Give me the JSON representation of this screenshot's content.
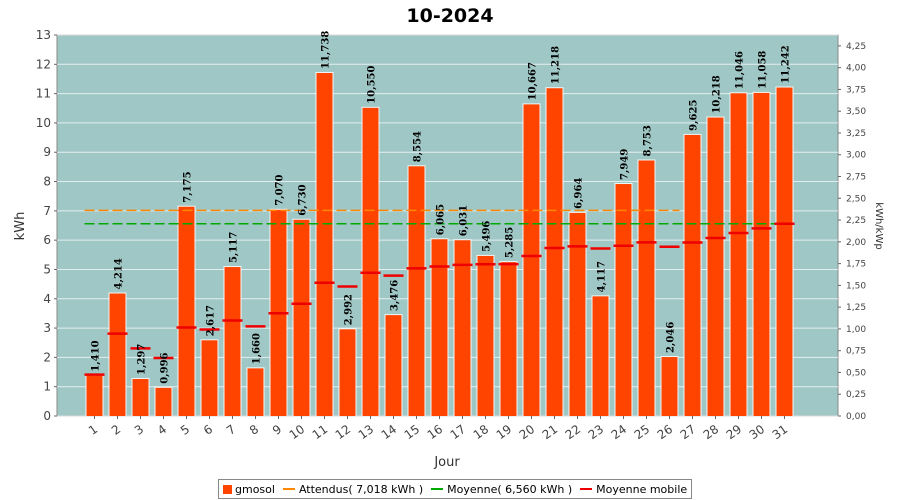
{
  "chart_data": {
    "type": "bar",
    "title": "10-2024",
    "xlabel": "Jour",
    "ylabel": "kWh",
    "y2label": "kWh/kWp",
    "ylim": [
      0,
      13
    ],
    "y2lim": [
      0,
      4.375
    ],
    "y2ticks": [
      "0,00",
      "0,25",
      "0,50",
      "0,75",
      "1,00",
      "1,25",
      "1,50",
      "1,75",
      "2,00",
      "2,25",
      "2,50",
      "2,75",
      "3,00",
      "3,25",
      "3,50",
      "3,75",
      "4,00",
      "4,25"
    ],
    "yticks": [
      "0",
      "1",
      "2",
      "3",
      "4",
      "5",
      "6",
      "7",
      "8",
      "9",
      "10",
      "11",
      "12",
      "13"
    ],
    "categories": [
      "1",
      "2",
      "3",
      "4",
      "5",
      "6",
      "7",
      "8",
      "9",
      "10",
      "11",
      "12",
      "13",
      "14",
      "15",
      "16",
      "17",
      "18",
      "19",
      "20",
      "21",
      "22",
      "23",
      "24",
      "25",
      "26",
      "27",
      "28",
      "29",
      "30",
      "31"
    ],
    "series": [
      {
        "name": "gmosol",
        "color": "#ff4400",
        "values": [
          1.41,
          4.214,
          1.297,
          0.996,
          7.175,
          2.617,
          5.117,
          1.66,
          7.07,
          6.73,
          11.738,
          2.992,
          10.55,
          3.476,
          8.554,
          6.065,
          6.031,
          5.496,
          5.285,
          10.667,
          11.218,
          6.964,
          4.117,
          7.949,
          8.753,
          2.046,
          9.625,
          10.218,
          11.046,
          11.058,
          11.242
        ],
        "labels": [
          "1,410",
          "4,214",
          "1,297",
          "0,996",
          "7,175",
          "2,617",
          "5,117",
          "1,660",
          "7,070",
          "6,730",
          "11,738",
          "2,992",
          "10,550",
          "3,476",
          "8,554",
          "6,065",
          "6,031",
          "5,496",
          "5,285",
          "10,667",
          "11,218",
          "6,964",
          "4,117",
          "7,949",
          "8,753",
          "2,046",
          "9,625",
          "10,218",
          "11,046",
          "11,058",
          "11,242"
        ]
      },
      {
        "name": "Moyenne mobile",
        "color": "#ee0000",
        "values": [
          1.41,
          2.812,
          2.307,
          1.979,
          3.018,
          2.951,
          3.26,
          3.06,
          3.506,
          3.828,
          4.547,
          4.417,
          4.889,
          4.788,
          5.039,
          5.103,
          5.157,
          5.176,
          5.183,
          5.458,
          5.732,
          5.788,
          5.715,
          5.808,
          5.926,
          5.777,
          5.92,
          6.074,
          6.244,
          6.404,
          6.56
        ]
      }
    ],
    "reference_lines": [
      {
        "name": "Attendus( 7,018 kWh )",
        "value": 7.018,
        "color": "#ff8800",
        "style": "dashed",
        "x_start": "1",
        "x_end": "26"
      },
      {
        "name": "Moyenne( 6,560 kWh )",
        "value": 6.56,
        "color": "#00aa00",
        "style": "dashed",
        "x_start": "1",
        "x_end": "31"
      }
    ],
    "legend": [
      "gmosol",
      "Attendus( 7,018 kWh )",
      "Moyenne( 6,560 kWh )",
      "Moyenne mobile"
    ],
    "legend_position": "bottom",
    "background": "#9fc7c5",
    "grid": true
  }
}
